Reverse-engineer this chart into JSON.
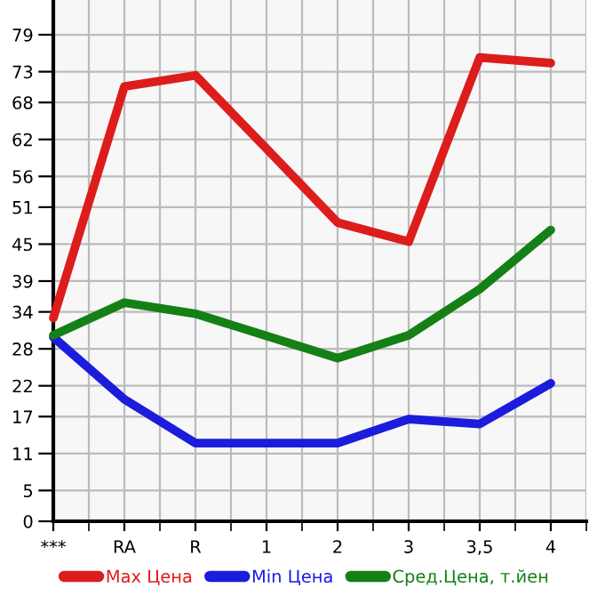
{
  "chart_data": {
    "type": "line",
    "categories": [
      "***",
      "RA",
      "R",
      "1",
      "2",
      "3",
      "3,5",
      "4"
    ],
    "series": [
      {
        "name": "Max Цена",
        "color": "#dd1c1c",
        "values": [
          33,
          70.6,
          72.4,
          60.5,
          48.5,
          45.4,
          75.3,
          74.4
        ]
      },
      {
        "name": "Min Цена",
        "color": "#1c1cdd",
        "values": [
          29.9,
          19.8,
          12.7,
          12.7,
          12.7,
          16.6,
          15.8,
          22.4
        ]
      },
      {
        "name": "Сред.Цена, т.йен",
        "color": "#158015",
        "values": [
          30.2,
          35.5,
          33.7,
          30.1,
          26.5,
          30.2,
          37.7,
          47.3
        ]
      }
    ],
    "ylim": [
      0,
      84.64
    ],
    "yticks": [
      0,
      5,
      11,
      17,
      22,
      28,
      34,
      39,
      45,
      51,
      56,
      62,
      68,
      73,
      79
    ],
    "grid": true,
    "legend": "bottom",
    "marker": "none",
    "line_style": "solid"
  }
}
